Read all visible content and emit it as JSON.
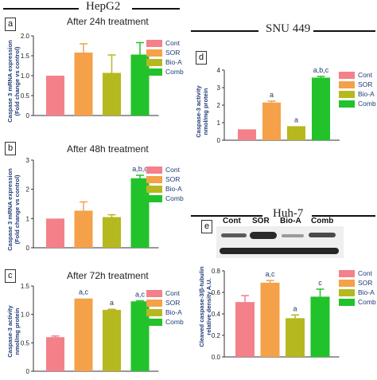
{
  "headers": {
    "left": "HepG2",
    "right_top": "SNU 449",
    "right_mid": "Huh-7"
  },
  "legend_entries": [
    {
      "label": "Cont",
      "color": "#f4808a"
    },
    {
      "label": "SOR",
      "color": "#f4a14a"
    },
    {
      "label": "Bio-A",
      "color": "#b5b81e"
    },
    {
      "label": "Comb",
      "color": "#22c22a"
    }
  ],
  "blot": {
    "lanes": [
      "Cont",
      "SOR",
      "Bio-A",
      "Comb"
    ]
  },
  "panels": {
    "a": {
      "letter": "a",
      "title": "After 24h treatment",
      "ylabel1": "Caspase 3 mRNA expression",
      "ylabel2": "(Fold change vs control)"
    },
    "b": {
      "letter": "b",
      "title": "After 48h treatment",
      "ylabel1": "Caspase 3 mRNA expression",
      "ylabel2": "(Fold change vs control)"
    },
    "c": {
      "letter": "c",
      "title": "After 72h treatment",
      "ylabel1": "Caspase-3 activity",
      "ylabel2": "nmol/mg protein"
    },
    "d": {
      "letter": "d",
      "ylabel1": "Caspase-3 activity",
      "ylabel2": "nmol/mg protein"
    },
    "e": {
      "letter": "e",
      "ylabel1": "Cleaved caspase-3/β-tubulin",
      "ylabel2": "relative density A.U."
    }
  },
  "chart_data": [
    {
      "id": "a",
      "type": "bar",
      "title": "After 24h treatment",
      "categories": [
        "Cont",
        "SOR",
        "Bio-A",
        "Comb"
      ],
      "values": [
        1.0,
        1.58,
        1.07,
        1.53
      ],
      "errors": [
        0,
        0.22,
        0.45,
        0.3
      ],
      "annotations": [
        "",
        "",
        "",
        ""
      ],
      "ylim": [
        0,
        2
      ],
      "yticks": [
        "0",
        "0.5",
        "1.0",
        "1.5",
        "2.0"
      ],
      "ytick_values": [
        0,
        0.5,
        1.0,
        1.5,
        2.0
      ]
    },
    {
      "id": "b",
      "type": "bar",
      "title": "After 48h treatment",
      "categories": [
        "Cont",
        "SOR",
        "Bio-A",
        "Comb"
      ],
      "values": [
        1.0,
        1.27,
        1.05,
        2.38
      ],
      "errors": [
        0,
        0.3,
        0.08,
        0.1
      ],
      "annotations": [
        "",
        "",
        "",
        "a,b,c"
      ],
      "ylim": [
        0,
        3
      ],
      "yticks": [
        "0",
        "1",
        "2",
        "3"
      ],
      "ytick_values": [
        0,
        1,
        2,
        3
      ]
    },
    {
      "id": "c",
      "type": "bar",
      "title": "After 72h treatment",
      "categories": [
        "Cont",
        "SOR",
        "Bio-A",
        "Comb"
      ],
      "values": [
        0.6,
        1.28,
        1.08,
        1.23
      ],
      "errors": [
        0.02,
        0,
        0.01,
        0.01
      ],
      "annotations": [
        "",
        "a,c",
        "a",
        "a,c"
      ],
      "ylim": [
        0,
        1.5
      ],
      "yticks": [
        "0",
        "0.5",
        "1.0",
        "1.5"
      ],
      "ytick_values": [
        0,
        0.5,
        1.0,
        1.5
      ]
    },
    {
      "id": "d",
      "type": "bar",
      "categories": [
        "Cont",
        "SOR",
        "Bio-A",
        "Comb"
      ],
      "values": [
        0.62,
        2.15,
        0.8,
        3.57
      ],
      "errors": [
        0,
        0.08,
        0,
        0.07
      ],
      "annotations": [
        "",
        "a",
        "a",
        "a,b,c"
      ],
      "ylim": [
        0,
        4
      ],
      "yticks": [
        "0",
        "1",
        "2",
        "3",
        "4"
      ],
      "ytick_values": [
        0,
        1,
        2,
        3,
        4
      ]
    },
    {
      "id": "e",
      "type": "bar",
      "categories": [
        "Cont",
        "SOR",
        "Bio-A",
        "Comb"
      ],
      "values": [
        0.51,
        0.69,
        0.36,
        0.56
      ],
      "errors": [
        0.06,
        0.02,
        0.03,
        0.07
      ],
      "annotations": [
        "",
        "a,c",
        "a",
        "c"
      ],
      "ylim": [
        0,
        0.8
      ],
      "yticks": [
        "0.0",
        "0.2",
        "0.4",
        "0.6",
        "0.8"
      ],
      "ytick_values": [
        0,
        0.2,
        0.4,
        0.6,
        0.8
      ]
    }
  ]
}
